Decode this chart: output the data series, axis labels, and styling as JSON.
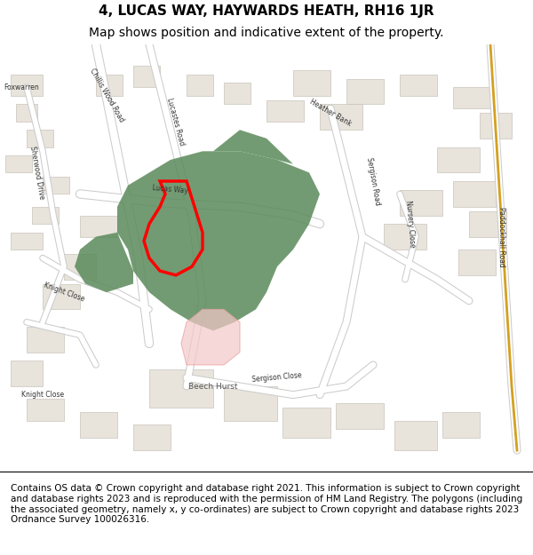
{
  "title_line1": "4, LUCAS WAY, HAYWARDS HEATH, RH16 1JR",
  "title_line2": "Map shows position and indicative extent of the property.",
  "footer_text": "Contains OS data © Crown copyright and database right 2021. This information is subject to Crown copyright and database rights 2023 and is reproduced with the permission of HM Land Registry. The polygons (including the associated geometry, namely x, y co-ordinates) are subject to Crown copyright and database rights 2023 Ordnance Survey 100026316.",
  "bg_color": "#f2efe9",
  "map_bg": "#f8f8f5",
  "road_color": "#ffffff",
  "road_outline": "#cccccc",
  "building_fill": "#e8e4dc",
  "building_outline": "#c8c4bc",
  "green_fill": "#5a8a5a",
  "green_alpha": 0.85,
  "red_outline": "#ff0000",
  "red_lw": 2.5,
  "pink_fill": "#f5c8c8",
  "pink_alpha": 0.7,
  "orange_fill": "#e8a060",
  "title_fontsize": 11,
  "subtitle_fontsize": 10,
  "footer_fontsize": 7.5,
  "label_fontsize": 7.5
}
